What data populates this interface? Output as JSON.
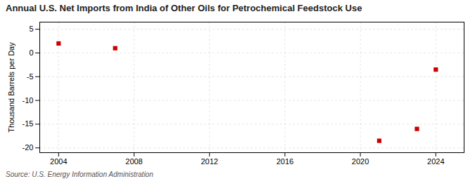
{
  "chart_data": {
    "type": "scatter",
    "title": "Annual U.S. Net Imports from India of Other Oils for Petrochemical Feedstock Use",
    "ylabel": "Thousand Barrels per Day",
    "annotations": [
      "Source: U.S. Energy Information Administration"
    ],
    "x": [
      2004,
      2007,
      2021,
      2023,
      2024
    ],
    "values": [
      2.0,
      1.0,
      -18.5,
      -16.0,
      -3.5
    ],
    "color": "#cc0000",
    "marker": "square",
    "xlim": [
      2003.0,
      2025.5
    ],
    "ylim": [
      -21,
      6.5
    ],
    "xticks": [
      2004,
      2008,
      2012,
      2016,
      2020,
      2024
    ],
    "yticks": [
      5,
      0,
      -5,
      -10,
      -15,
      -20
    ],
    "grid": true
  }
}
